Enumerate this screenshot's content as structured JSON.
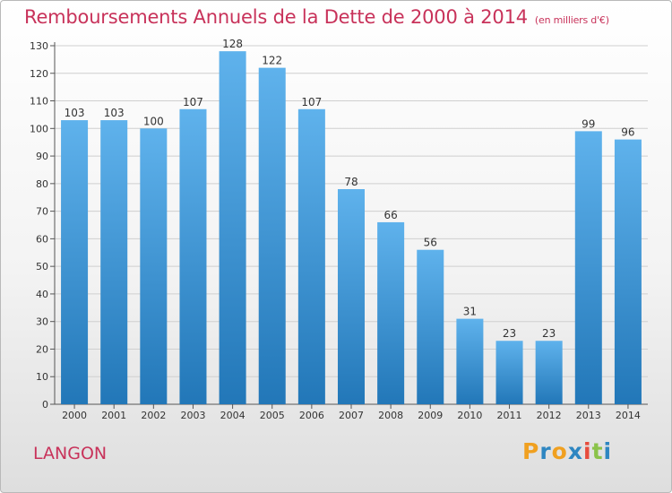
{
  "header": {
    "title": "Remboursements Annuels de la Dette de 2000 à 2014",
    "unit": "(en milliers d'€)"
  },
  "footer": {
    "commune": "LANGON",
    "logo": [
      "P",
      "r",
      "o",
      "x",
      "i",
      "t",
      "i"
    ]
  },
  "colors": {
    "title": "#c8325a",
    "bar_top": "#5fb2ec",
    "bar_bottom": "#2277b8",
    "logo": [
      "#f0a020",
      "#2e86c1",
      "#f0a020",
      "#2e86c1",
      "#e74c3c",
      "#8bc34a",
      "#2e86c1"
    ]
  },
  "chart_data": {
    "type": "bar",
    "categories": [
      "2000",
      "2001",
      "2002",
      "2003",
      "2004",
      "2005",
      "2006",
      "2007",
      "2008",
      "2009",
      "2010",
      "2011",
      "2012",
      "2013",
      "2014"
    ],
    "values": [
      103,
      103,
      100,
      107,
      128,
      122,
      107,
      78,
      66,
      56,
      31,
      23,
      23,
      99,
      96
    ],
    "ylim": [
      0,
      130
    ],
    "yticks": [
      0,
      10,
      20,
      30,
      40,
      50,
      60,
      70,
      80,
      90,
      100,
      110,
      120,
      130
    ],
    "grid": true,
    "data_labels": true
  }
}
